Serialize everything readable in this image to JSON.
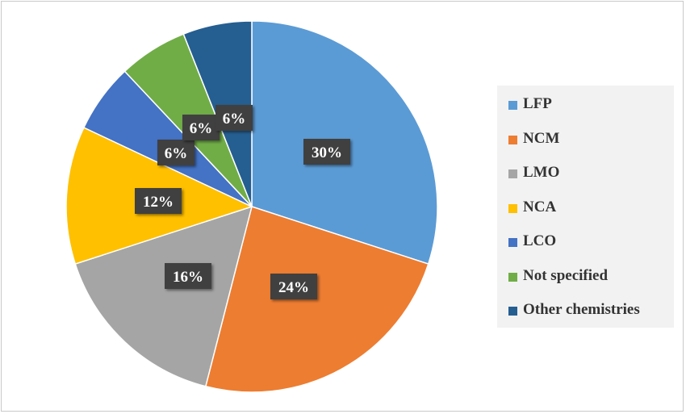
{
  "chart_data": {
    "type": "pie",
    "title": "",
    "start_angle_deg": 0,
    "direction": "clockwise",
    "slices": [
      {
        "label": "LFP",
        "value": 30,
        "display": "30%",
        "color": "#5b9bd5"
      },
      {
        "label": "NCM",
        "value": 24,
        "display": "24%",
        "color": "#ed7d31"
      },
      {
        "label": "LMO",
        "value": 16,
        "display": "16%",
        "color": "#a5a5a5"
      },
      {
        "label": "NCA",
        "value": 12,
        "display": "12%",
        "color": "#ffc000"
      },
      {
        "label": "LCO",
        "value": 6,
        "display": "6%",
        "color": "#4472c4"
      },
      {
        "label": "Not specified",
        "value": 6,
        "display": "6%",
        "color": "#70ad47"
      },
      {
        "label": "Other chemistries",
        "value": 6,
        "display": "6%",
        "color": "#255e91"
      }
    ],
    "legend_position": "right",
    "data_label_background": "#404040",
    "data_label_color": "#ffffff"
  }
}
